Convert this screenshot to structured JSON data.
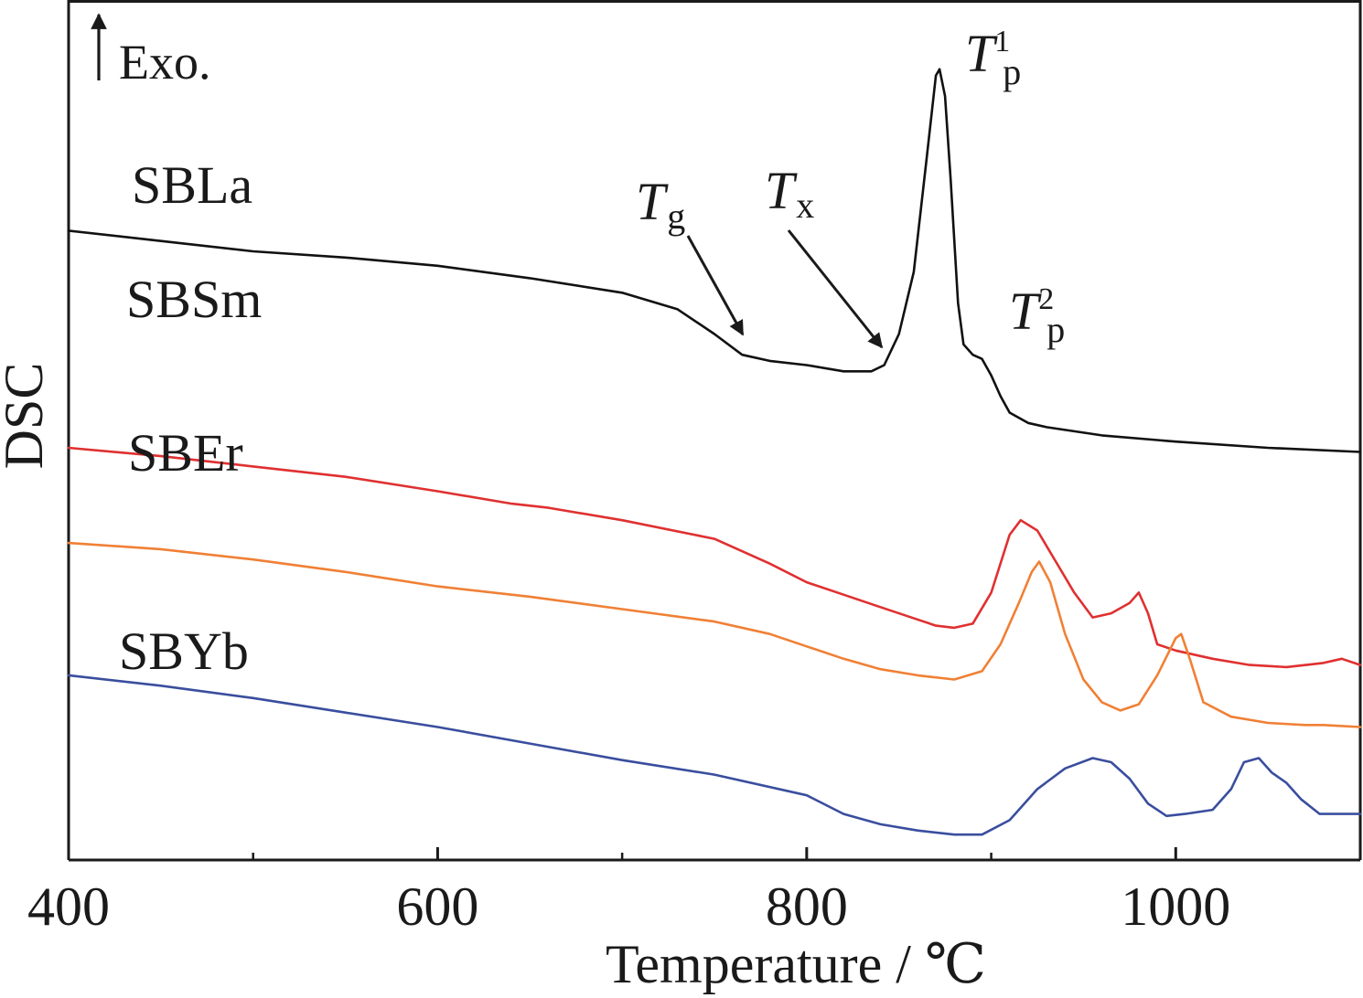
{
  "chart_data": {
    "type": "line",
    "title": "",
    "xlabel": "Temperature / ℃",
    "ylabel": "DSC",
    "xlim": [
      400,
      1100
    ],
    "x_ticks": [
      400,
      600,
      800,
      1000
    ],
    "x_minor_ticks": [
      500,
      700,
      900
    ],
    "y_ticks": [],
    "grid": false,
    "exo_label": "Exo.",
    "series": [
      {
        "name": "SBLa",
        "color": "#111111",
        "x": [
          400,
          450,
          500,
          550,
          600,
          650,
          700,
          730,
          750,
          765,
          780,
          800,
          820,
          835,
          842,
          850,
          858,
          865,
          870,
          872,
          875,
          878,
          882,
          885,
          890,
          895,
          900,
          905,
          910,
          920,
          930,
          960,
          1000,
          1050,
          1100
        ],
        "y": [
          0.795,
          0.79,
          0.785,
          0.782,
          0.778,
          0.772,
          0.765,
          0.757,
          0.745,
          0.735,
          0.732,
          0.73,
          0.727,
          0.727,
          0.73,
          0.745,
          0.775,
          0.83,
          0.87,
          0.873,
          0.86,
          0.82,
          0.76,
          0.74,
          0.735,
          0.733,
          0.725,
          0.715,
          0.707,
          0.702,
          0.7,
          0.696,
          0.693,
          0.69,
          0.688
        ]
      },
      {
        "name": "SBSm",
        "color": "#e03030",
        "x": [
          400,
          450,
          500,
          550,
          600,
          640,
          660,
          700,
          750,
          780,
          800,
          820,
          840,
          860,
          870,
          880,
          890,
          900,
          910,
          916,
          925,
          935,
          945,
          955,
          965,
          975,
          980,
          985,
          990,
          1000,
          1020,
          1040,
          1060,
          1080,
          1090,
          1100
        ],
        "y": [
          0.69,
          0.686,
          0.681,
          0.676,
          0.669,
          0.663,
          0.661,
          0.655,
          0.646,
          0.634,
          0.625,
          0.619,
          0.613,
          0.607,
          0.604,
          0.603,
          0.605,
          0.62,
          0.648,
          0.655,
          0.65,
          0.635,
          0.62,
          0.608,
          0.61,
          0.615,
          0.62,
          0.61,
          0.595,
          0.592,
          0.588,
          0.585,
          0.584,
          0.586,
          0.588,
          0.585
        ]
      },
      {
        "name": "SBEr",
        "color": "#f08035",
        "x": [
          400,
          450,
          500,
          550,
          600,
          650,
          700,
          750,
          780,
          800,
          820,
          840,
          860,
          880,
          895,
          905,
          915,
          922,
          926,
          932,
          940,
          950,
          960,
          970,
          980,
          990,
          1000,
          1003,
          1008,
          1015,
          1030,
          1050,
          1070,
          1080,
          1100
        ],
        "y": [
          0.644,
          0.641,
          0.636,
          0.63,
          0.623,
          0.618,
          0.612,
          0.606,
          0.6,
          0.594,
          0.588,
          0.583,
          0.58,
          0.578,
          0.582,
          0.595,
          0.615,
          0.63,
          0.635,
          0.625,
          0.6,
          0.578,
          0.567,
          0.563,
          0.566,
          0.58,
          0.598,
          0.6,
          0.587,
          0.567,
          0.56,
          0.557,
          0.556,
          0.556,
          0.555
        ]
      },
      {
        "name": "SBYb",
        "color": "#3a4e9e",
        "x": [
          400,
          450,
          500,
          550,
          600,
          650,
          700,
          750,
          800,
          820,
          840,
          860,
          880,
          895,
          910,
          925,
          940,
          955,
          965,
          975,
          985,
          995,
          1005,
          1020,
          1030,
          1037,
          1045,
          1052,
          1060,
          1068,
          1078,
          1088,
          1100
        ],
        "y": [
          0.58,
          0.575,
          0.569,
          0.562,
          0.555,
          0.547,
          0.539,
          0.532,
          0.522,
          0.513,
          0.508,
          0.505,
          0.503,
          0.503,
          0.51,
          0.525,
          0.535,
          0.54,
          0.538,
          0.53,
          0.518,
          0.512,
          0.513,
          0.515,
          0.525,
          0.538,
          0.54,
          0.533,
          0.528,
          0.52,
          0.513,
          0.513,
          0.513
        ]
      }
    ],
    "annotations": [
      {
        "symbol": "T",
        "subscript": "g",
        "superscript": "",
        "temperature": 765,
        "curve": "SBLa"
      },
      {
        "symbol": "T",
        "subscript": "x",
        "superscript": "",
        "temperature": 842,
        "curve": "SBLa"
      },
      {
        "symbol": "T",
        "subscript": "p",
        "superscript": "1",
        "temperature": 874,
        "curve": "SBLa"
      },
      {
        "symbol": "T",
        "subscript": "p",
        "superscript": "2",
        "temperature": 900,
        "curve": "SBLa"
      }
    ]
  }
}
